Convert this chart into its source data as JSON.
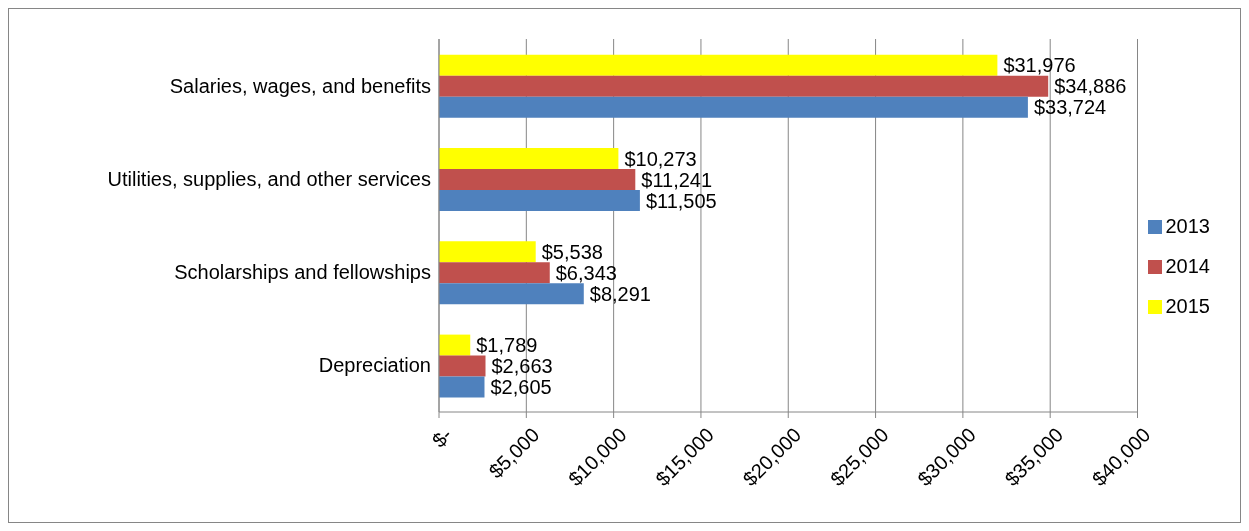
{
  "chart_data": {
    "type": "bar",
    "orientation": "horizontal",
    "categories": [
      "Salaries, wages, and benefits",
      "Utilities, supplies, and other services",
      "Scholarships and fellowships",
      "Depreciation"
    ],
    "series": [
      {
        "name": "2015",
        "color": "#ffff00",
        "values": [
          31976,
          10273,
          5538,
          1789
        ],
        "value_labels": [
          "$31,976",
          "$10,273",
          "$5,538",
          "$1,789"
        ]
      },
      {
        "name": "2014",
        "color": "#c0504d",
        "values": [
          34886,
          11241,
          6343,
          2663
        ],
        "value_labels": [
          "$34,886",
          "$11,241",
          "$6,343",
          "$2,663"
        ]
      },
      {
        "name": "2013",
        "color": "#4f81bd",
        "values": [
          33724,
          11505,
          8291,
          2605
        ],
        "value_labels": [
          "$33,724",
          "$11,505",
          "$8,291",
          "$2,605"
        ]
      }
    ],
    "xlim": [
      0,
      40000
    ],
    "xticks": [
      {
        "value": 0,
        "label": "$-"
      },
      {
        "value": 5000,
        "label": "$5,000"
      },
      {
        "value": 10000,
        "label": "$10,000"
      },
      {
        "value": 15000,
        "label": "$15,000"
      },
      {
        "value": 20000,
        "label": "$20,000"
      },
      {
        "value": 25000,
        "label": "$25,000"
      },
      {
        "value": 30000,
        "label": "$30,000"
      },
      {
        "value": 35000,
        "label": "$35,000"
      },
      {
        "value": 40000,
        "label": "$40,000"
      }
    ],
    "grid": "x",
    "legend": "right"
  }
}
